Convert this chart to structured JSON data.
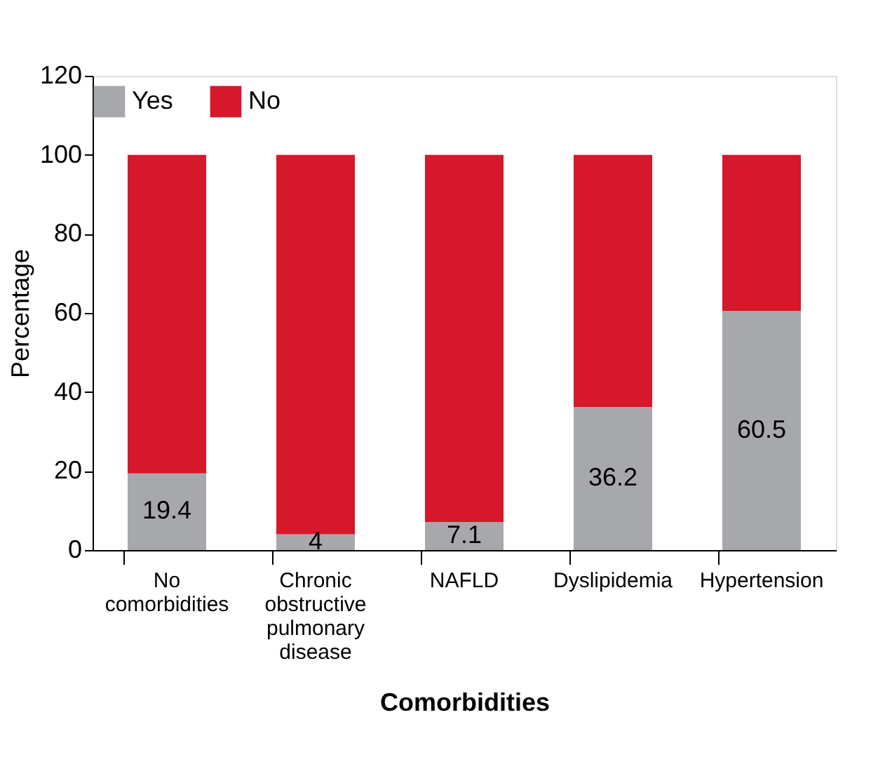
{
  "chart_data": {
    "type": "bar",
    "stacked": true,
    "xlabel": "Comorbidities",
    "ylabel": "Percentage",
    "categories": [
      "No comorbidities",
      "Chronic obstructive pulmonary disease",
      "NAFLD",
      "Dyslipidemia",
      "Hypertension"
    ],
    "series": [
      {
        "name": "Yes",
        "color": "#a7a8ab",
        "values": [
          19.4,
          4,
          7.1,
          36.2,
          60.5
        ],
        "value_labels": [
          "19.4",
          "4",
          "7.1",
          "36.2",
          "60.5"
        ]
      },
      {
        "name": "No",
        "color": "#d6182b",
        "values": [
          80.6,
          96,
          92.9,
          63.8,
          39.5
        ]
      }
    ],
    "ylim": [
      0,
      120
    ],
    "yticks": [
      0,
      20,
      40,
      60,
      80,
      100,
      120
    ],
    "grid": false,
    "legend": "top"
  }
}
